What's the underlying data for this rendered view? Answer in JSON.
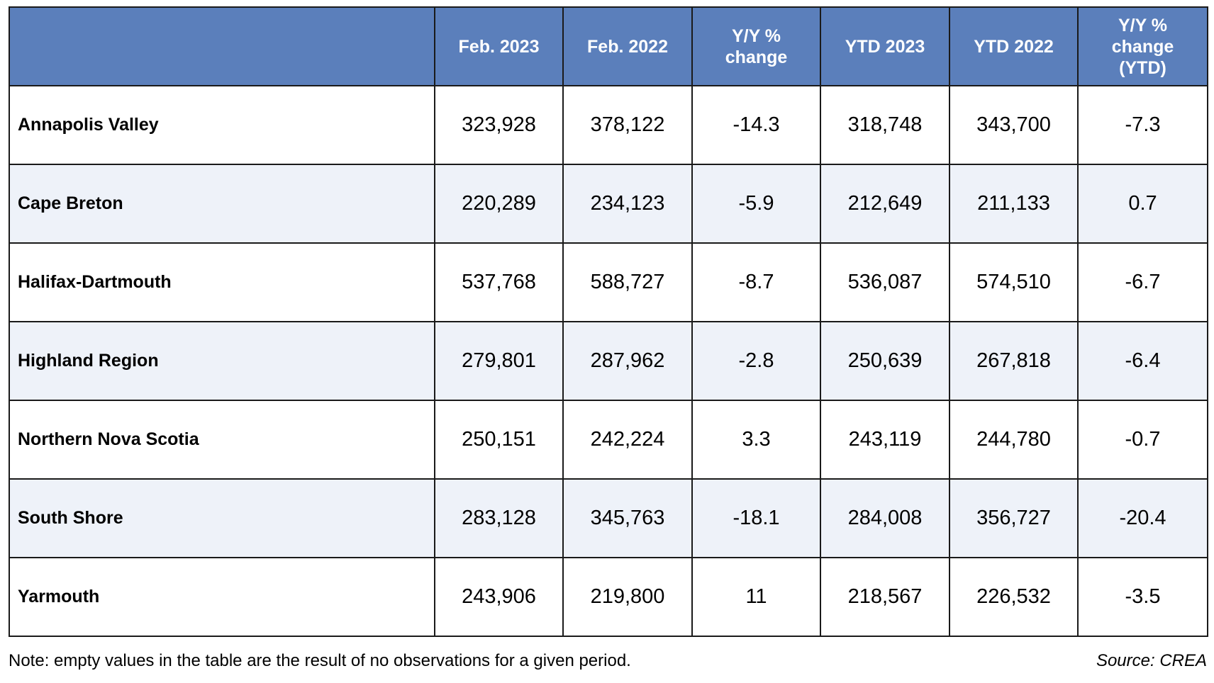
{
  "chart_data": {
    "type": "table",
    "columns": [
      "",
      "Feb. 2023",
      "Feb. 2022",
      "Y/Y % change",
      "YTD 2023",
      "YTD 2022",
      "Y/Y % change (YTD)"
    ],
    "rows": [
      {
        "label": "Annapolis Valley",
        "values": [
          "323,928",
          "378,122",
          "-14.3",
          "318,748",
          "343,700",
          "-7.3"
        ]
      },
      {
        "label": "Cape Breton",
        "values": [
          "220,289",
          "234,123",
          "-5.9",
          "212,649",
          "211,133",
          "0.7"
        ]
      },
      {
        "label": "Halifax-Dartmouth",
        "values": [
          "537,768",
          "588,727",
          "-8.7",
          "536,087",
          "574,510",
          "-6.7"
        ]
      },
      {
        "label": "Highland Region",
        "values": [
          "279,801",
          "287,962",
          "-2.8",
          "250,639",
          "267,818",
          "-6.4"
        ]
      },
      {
        "label": "Northern Nova Scotia",
        "values": [
          "250,151",
          "242,224",
          "3.3",
          "243,119",
          "244,780",
          "-0.7"
        ]
      },
      {
        "label": "South Shore",
        "values": [
          "283,128",
          "345,763",
          "-18.1",
          "284,008",
          "356,727",
          "-20.4"
        ]
      },
      {
        "label": "Yarmouth",
        "values": [
          "243,906",
          "219,800",
          "11",
          "218,567",
          "226,532",
          "-3.5"
        ]
      }
    ],
    "header_color": "#5b7fbb",
    "stripe_color": "#eef2f9"
  },
  "footer": {
    "note": "Note: empty values in the table are the result of no observations for a given period.",
    "source": "Source: CREA"
  }
}
